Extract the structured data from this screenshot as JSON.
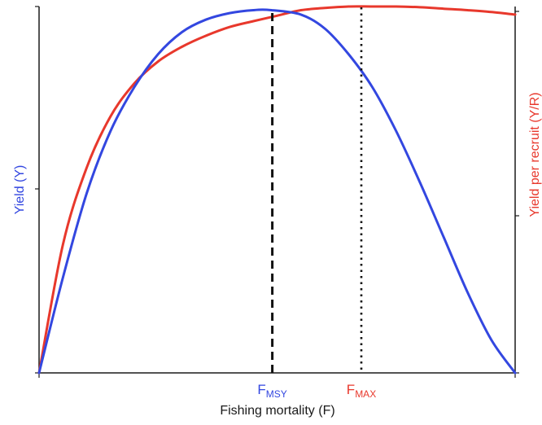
{
  "colors": {
    "yield": "#3347e0",
    "ypr": "#e8382c",
    "axis": "#1a1a1a"
  },
  "chart_data": {
    "type": "line",
    "xlabel": "Fishing mortality (F)",
    "ylabel_left": "Yield (Y)",
    "ylabel_right": "Yield per recruit (Y/R)",
    "xlim": [
      0,
      1
    ],
    "ylim": [
      0,
      1
    ],
    "grid": false,
    "series": [
      {
        "key": "yield",
        "color": "#3347e0",
        "x": [
          0,
          0.05,
          0.1,
          0.15,
          0.2,
          0.25,
          0.3,
          0.35,
          0.4,
          0.45,
          0.488,
          0.55,
          0.6,
          0.65,
          0.7,
          0.75,
          0.8,
          0.85,
          0.9,
          0.95,
          1.0
        ],
        "y": [
          0,
          0.26,
          0.49,
          0.66,
          0.78,
          0.87,
          0.93,
          0.964,
          0.982,
          0.99,
          0.99,
          0.978,
          0.94,
          0.87,
          0.78,
          0.66,
          0.52,
          0.37,
          0.22,
          0.09,
          0
        ]
      },
      {
        "key": "ypr",
        "color": "#e8382c",
        "x": [
          0,
          0.05,
          0.1,
          0.15,
          0.2,
          0.25,
          0.3,
          0.35,
          0.4,
          0.45,
          0.5,
          0.55,
          0.6,
          0.65,
          0.7,
          0.75,
          0.8,
          0.85,
          0.9,
          0.95,
          1.0
        ],
        "y": [
          0,
          0.35,
          0.56,
          0.7,
          0.79,
          0.85,
          0.89,
          0.92,
          0.944,
          0.96,
          0.975,
          0.99,
          0.996,
          1.0,
          1.0,
          1.0,
          0.998,
          0.994,
          0.99,
          0.985,
          0.978
        ]
      }
    ],
    "markers": [
      {
        "key": "fmsy",
        "label": "F",
        "sub": "MSY",
        "x": 0.49,
        "color": "#3347e0",
        "style": "dashed"
      },
      {
        "key": "fmax",
        "label": "F",
        "sub": "MAX",
        "x": 0.677,
        "color": "#e8382c",
        "style": "dotted"
      }
    ]
  }
}
